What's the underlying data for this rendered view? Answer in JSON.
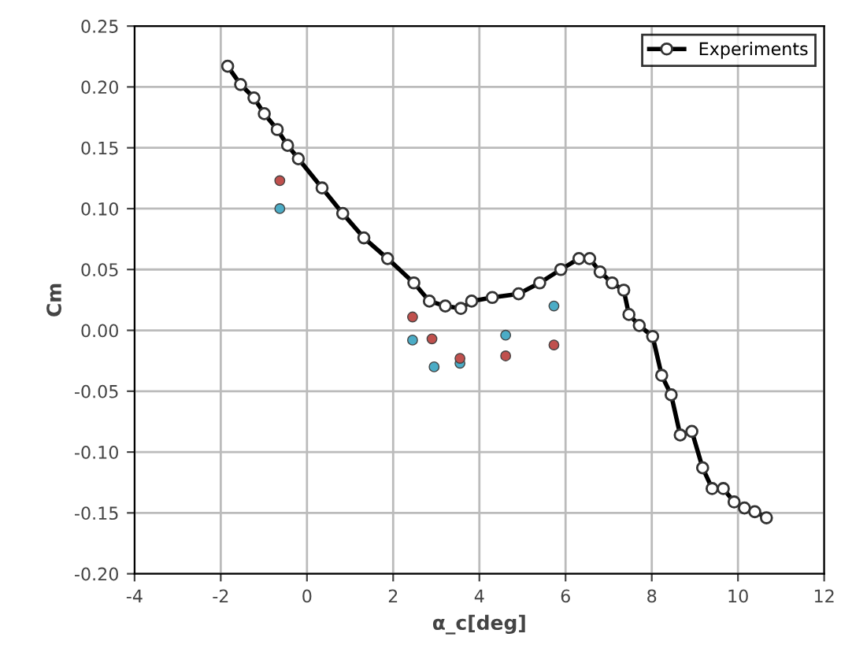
{
  "chart_data": {
    "type": "line",
    "xlabel": "α_c[deg]",
    "ylabel": "Cm",
    "xlim": [
      -4,
      12
    ],
    "ylim": [
      -0.2,
      0.25
    ],
    "xticks": [
      -4,
      -2,
      0,
      2,
      4,
      6,
      8,
      10,
      12
    ],
    "yticks": [
      {
        "value": -0.2,
        "label": "-0.20"
      },
      {
        "value": -0.15,
        "label": "-0.15"
      },
      {
        "value": -0.1,
        "label": "-0.10"
      },
      {
        "value": -0.05,
        "label": "-0.05"
      },
      {
        "value": 0,
        "label": "0.00"
      },
      {
        "value": 0.05,
        "label": "0.05"
      },
      {
        "value": 0.1,
        "label": "0.10"
      },
      {
        "value": 0.15,
        "label": "0.15"
      },
      {
        "value": 0.2,
        "label": "0.20"
      },
      {
        "value": 0.25,
        "label": "0.25"
      }
    ],
    "grid": true,
    "legend": "top right",
    "marker": "circle",
    "line_style": "solid",
    "series": [
      {
        "name": "Experiments",
        "color": "#000000",
        "x": [
          -1.84,
          -1.54,
          -1.23,
          -0.99,
          -0.69,
          -0.45,
          -0.2,
          0.35,
          0.83,
          1.32,
          1.87,
          2.48,
          2.84,
          3.21,
          3.57,
          3.82,
          4.3,
          4.91,
          5.4,
          5.89,
          6.31,
          6.56,
          6.8,
          7.08,
          7.35,
          7.47,
          7.71,
          8.02,
          8.23,
          8.45,
          8.66,
          8.93,
          9.18,
          9.4,
          9.66,
          9.91,
          10.15,
          10.39,
          10.66
        ],
        "values": [
          0.217,
          0.202,
          0.191,
          0.178,
          0.165,
          0.152,
          0.141,
          0.117,
          0.096,
          0.076,
          0.059,
          0.039,
          0.024,
          0.02,
          0.018,
          0.024,
          0.027,
          0.03,
          0.039,
          0.05,
          0.059,
          0.059,
          0.048,
          0.039,
          0.033,
          0.013,
          0.004,
          -0.005,
          -0.037,
          -0.053,
          -0.086,
          -0.083,
          -0.113,
          -0.13,
          -0.13,
          -0.141,
          -0.146,
          -0.149,
          -0.154
        ]
      },
      {
        "type": "scatter",
        "color": "#c0504d",
        "x": [
          -0.63,
          2.45,
          2.9,
          3.55,
          4.61,
          5.73
        ],
        "values": [
          0.123,
          0.011,
          -0.007,
          -0.023,
          -0.021,
          -0.012
        ]
      },
      {
        "type": "scatter",
        "color": "#4bacc6",
        "x": [
          -0.63,
          2.45,
          2.95,
          3.55,
          4.61,
          5.73
        ],
        "values": [
          0.1,
          -0.008,
          -0.03,
          -0.027,
          -0.004,
          0.02
        ]
      }
    ]
  }
}
